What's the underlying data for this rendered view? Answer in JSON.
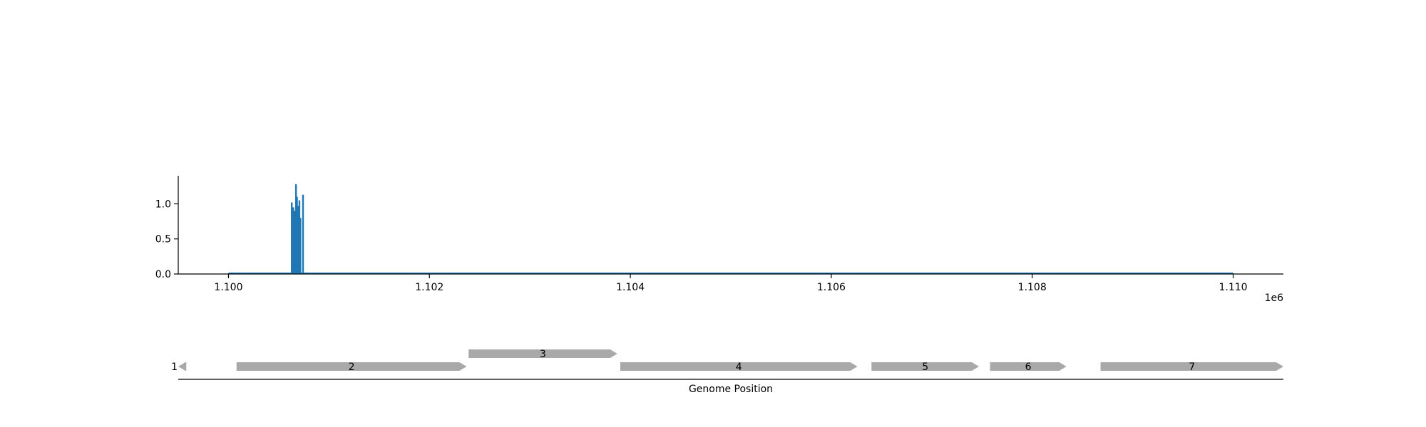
{
  "chart_data": [
    {
      "type": "bar",
      "title": "",
      "xlabel": "",
      "ylabel": "",
      "x_offset_label": "1e6",
      "xlim": [
        1099500,
        1110500
      ],
      "ylim": [
        0,
        1.4
      ],
      "x_ticks": [
        1100000,
        1102000,
        1104000,
        1106000,
        1108000,
        1110000
      ],
      "x_tick_labels": [
        "1.100",
        "1.102",
        "1.104",
        "1.106",
        "1.108",
        "1.110"
      ],
      "y_ticks": [
        0.0,
        0.5,
        1.0
      ],
      "y_tick_labels": [
        "0.0",
        "0.5",
        "1.0"
      ],
      "baseline": [
        1100000,
        1110000
      ],
      "color": "#1f77b4",
      "grid": false,
      "x": [
        1100630,
        1100645,
        1100660,
        1100672,
        1100682,
        1100694,
        1100706,
        1100716,
        1100742
      ],
      "values": [
        1.02,
        0.95,
        0.9,
        1.28,
        1.1,
        0.97,
        1.05,
        0.8,
        1.13
      ]
    },
    {
      "type": "gene-map",
      "xlabel": "Genome Position",
      "xlim": [
        1099500,
        1110500
      ],
      "color": "#a9a9a9",
      "genes": [
        {
          "label": "1",
          "start": 1099500,
          "end": 1099580,
          "strand": "-",
          "row": 0
        },
        {
          "label": "2",
          "start": 1100080,
          "end": 1102370,
          "strand": "+",
          "row": 0
        },
        {
          "label": "3",
          "start": 1102390,
          "end": 1103870,
          "strand": "+",
          "row": 1
        },
        {
          "label": "4",
          "start": 1103900,
          "end": 1106260,
          "strand": "+",
          "row": 0
        },
        {
          "label": "5",
          "start": 1106400,
          "end": 1107470,
          "strand": "+",
          "row": 0
        },
        {
          "label": "6",
          "start": 1107580,
          "end": 1108340,
          "strand": "+",
          "row": 0
        },
        {
          "label": "7",
          "start": 1108680,
          "end": 1110500,
          "strand": "+",
          "row": 0
        }
      ]
    }
  ]
}
